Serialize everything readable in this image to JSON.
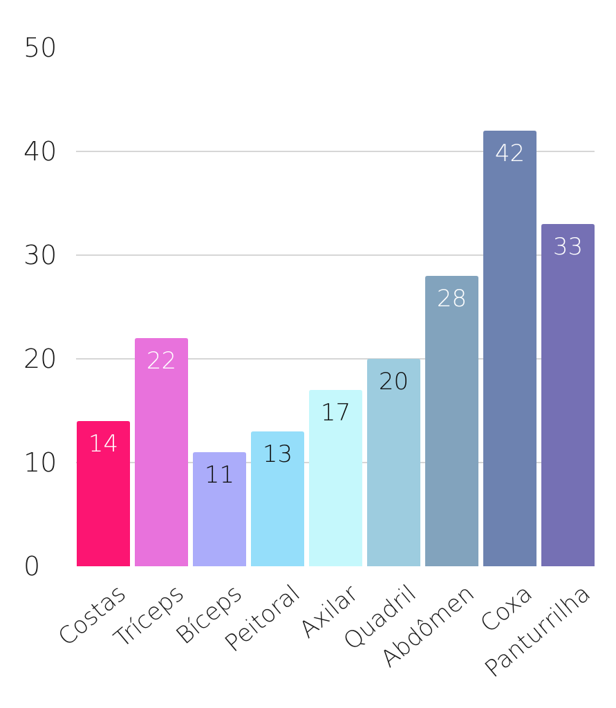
{
  "chart_data": {
    "type": "bar",
    "categories": [
      "Costas",
      "Tríceps",
      "Bíceps",
      "Peitoral",
      "Axilar",
      "Quadril",
      "Abdômen",
      "Coxa",
      "Panturrilha"
    ],
    "values": [
      14,
      22,
      11,
      13,
      17,
      20,
      28,
      42,
      33
    ],
    "colors": [
      "#fc1572",
      "#e872dc",
      "#abacfa",
      "#95defa",
      "#c5f8fc",
      "#9dccdf",
      "#82a3bd",
      "#6d82b0",
      "#7570b4"
    ],
    "label_colors": [
      "#ffffff",
      "#ffffff",
      "#111111",
      "#111111",
      "#111111",
      "#111111",
      "#ffffff",
      "#ffffff",
      "#ffffff"
    ],
    "ylim": [
      0,
      50
    ],
    "yticks": [
      0,
      10,
      20,
      30,
      40,
      50
    ],
    "grid": true,
    "title": "",
    "xlabel": "",
    "ylabel": ""
  }
}
